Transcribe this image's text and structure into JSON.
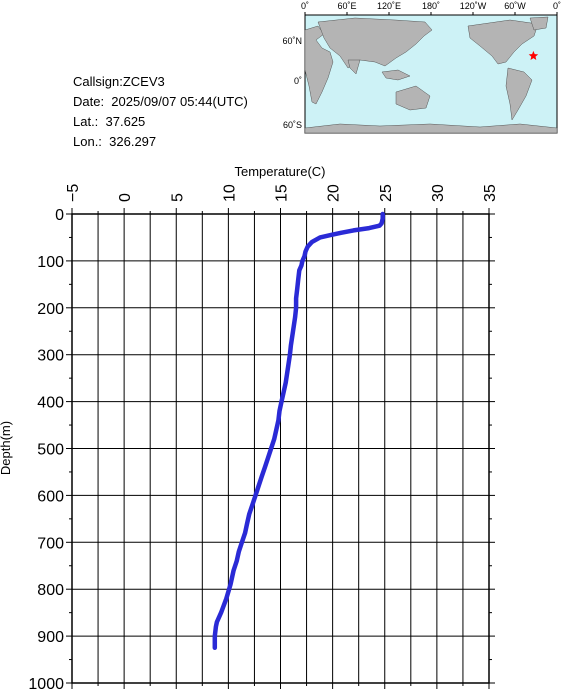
{
  "info": {
    "callsign": "Callsign:ZCEV3",
    "date": "Date:  2025/09/07 05:44(UTC)",
    "lat": "Lat.:  37.625",
    "lon": "Lon.:  326.297"
  },
  "map": {
    "top_labels": [
      "0˚",
      "60˚E",
      "120˚E",
      "180˚",
      "120˚W",
      "60˚W",
      "0˚"
    ],
    "left_labels": [
      "60˚N",
      "0˚",
      "60˚S"
    ],
    "station_lon": 326.297,
    "station_lat": 37.625,
    "colors": {
      "ocean": "#cdf2f6",
      "land": "#b4b4b4",
      "marker": "#ff0000"
    }
  },
  "chart_data": {
    "type": "line",
    "xlabel": "Temperature(C)",
    "ylabel": "Depth(m)",
    "xlim": [
      -5,
      35
    ],
    "ylim": [
      1000,
      0
    ],
    "x_ticks": [
      -5,
      0,
      5,
      10,
      15,
      20,
      25,
      30,
      35
    ],
    "x_tick_labels": [
      "−5",
      "0",
      "5",
      "10",
      "15",
      "20",
      "25",
      "30",
      "35"
    ],
    "y_ticks": [
      0,
      100,
      200,
      300,
      400,
      500,
      600,
      700,
      800,
      900,
      1000
    ],
    "y_tick_labels": [
      "0",
      "100",
      "200",
      "300",
      "400",
      "500",
      "600",
      "700",
      "800",
      "900",
      "1000"
    ],
    "grid": true,
    "line_color": "#2a2ad6",
    "series": [
      {
        "x": [
          24.8,
          24.8,
          24.7,
          24.5,
          23.5,
          22.0,
          20.8,
          19.8,
          18.8,
          18.0,
          17.6,
          17.4,
          17.3,
          17.1,
          17.0,
          16.8,
          16.7,
          16.6,
          16.5,
          16.5,
          16.4,
          16.2,
          16.0,
          15.9,
          15.7,
          15.5,
          15.3,
          15.1,
          14.9,
          14.8,
          14.6,
          14.4,
          14.1,
          13.8,
          13.5,
          13.2,
          12.9,
          12.6,
          12.3,
          12.0,
          11.8,
          11.6,
          11.3,
          11.0,
          10.8,
          10.5,
          10.2,
          9.8,
          9.3,
          8.9,
          8.8,
          8.7,
          8.7
        ],
        "y": [
          0,
          10,
          20,
          25,
          30,
          35,
          40,
          45,
          50,
          60,
          70,
          80,
          90,
          100,
          110,
          120,
          140,
          160,
          180,
          200,
          220,
          250,
          280,
          300,
          330,
          360,
          380,
          400,
          420,
          440,
          460,
          480,
          500,
          520,
          540,
          560,
          580,
          600,
          620,
          640,
          660,
          680,
          700,
          720,
          740,
          760,
          790,
          820,
          850,
          870,
          880,
          900,
          925
        ]
      }
    ]
  }
}
